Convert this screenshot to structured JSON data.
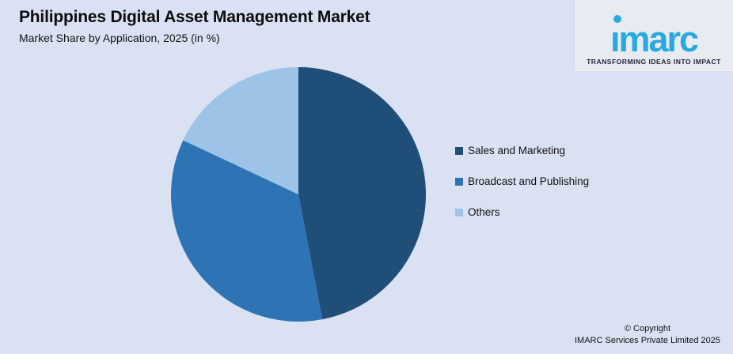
{
  "header": {
    "title": "Philippines Digital Asset Management Market",
    "subtitle": "Market Share by Application, 2025 (in %)"
  },
  "logo": {
    "brand": "imarc",
    "tagline": "TRANSFORMING IDEAS INTO IMPACT",
    "brand_color": "#29A9E1"
  },
  "chart_data": {
    "type": "pie",
    "title": "Philippines Digital Asset Management Market",
    "subtitle": "Market Share by Application, 2025 (in %)",
    "categories": [
      "Sales and Marketing",
      "Broadcast and Publishing",
      "Others"
    ],
    "values": [
      47,
      35,
      18
    ],
    "colors": [
      "#1F4E79",
      "#2E74B5",
      "#9DC3E6"
    ],
    "start_angle_deg": 0,
    "direction": "clockwise",
    "legend_position": "right",
    "data_labels_shown": false
  },
  "legend": {
    "items": [
      {
        "label": "Sales and Marketing",
        "color": "#1F4E79"
      },
      {
        "label": "Broadcast and Publishing",
        "color": "#2E74B5"
      },
      {
        "label": "Others",
        "color": "#9DC3E6"
      }
    ]
  },
  "footer": {
    "line1": "© Copyright",
    "line2": "IMARC Services Private Limited 2025"
  },
  "colors": {
    "background": "#D9E1F2",
    "logo_panel": "#e8ebf1",
    "text": "#0d0d0d"
  }
}
